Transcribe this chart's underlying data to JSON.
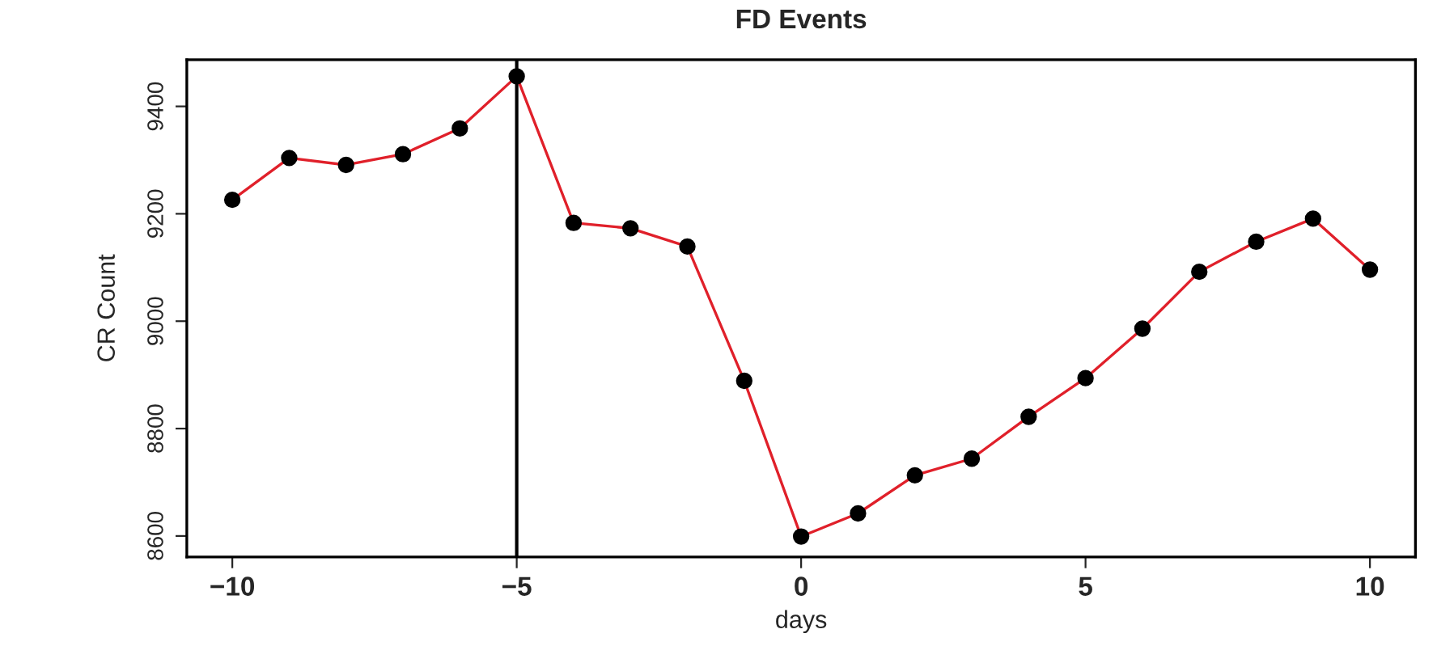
{
  "chart_data": {
    "type": "line",
    "title": "FD Events",
    "xlabel": "days",
    "ylabel": "CR Count",
    "x": [
      -10,
      -9,
      -8,
      -7,
      -6,
      -5,
      -4,
      -3,
      -2,
      -1,
      0,
      1,
      2,
      3,
      4,
      5,
      6,
      7,
      8,
      9,
      10
    ],
    "series": [
      {
        "color": "#e0202a",
        "values": [
          9226,
          9304,
          9291,
          9311,
          9359,
          9456,
          9183,
          9173,
          9139,
          8889,
          8599,
          8642,
          8713,
          8744,
          8822,
          8894,
          8986,
          9092,
          9148,
          9191,
          9096
        ]
      }
    ],
    "marker": "circle",
    "grid": false,
    "xlim": [
      -10.8,
      10.8
    ],
    "xticks": [
      {
        "value": -10,
        "label": "−10"
      },
      {
        "value": -5,
        "label": "−5"
      },
      0,
      5,
      10
    ],
    "ylim": [
      8561,
      9487
    ],
    "yticks": [
      8600,
      8800,
      9000,
      9200,
      9400
    ],
    "ref_lines": [
      {
        "axis": "x",
        "value": -5,
        "color": "#000000"
      }
    ]
  }
}
